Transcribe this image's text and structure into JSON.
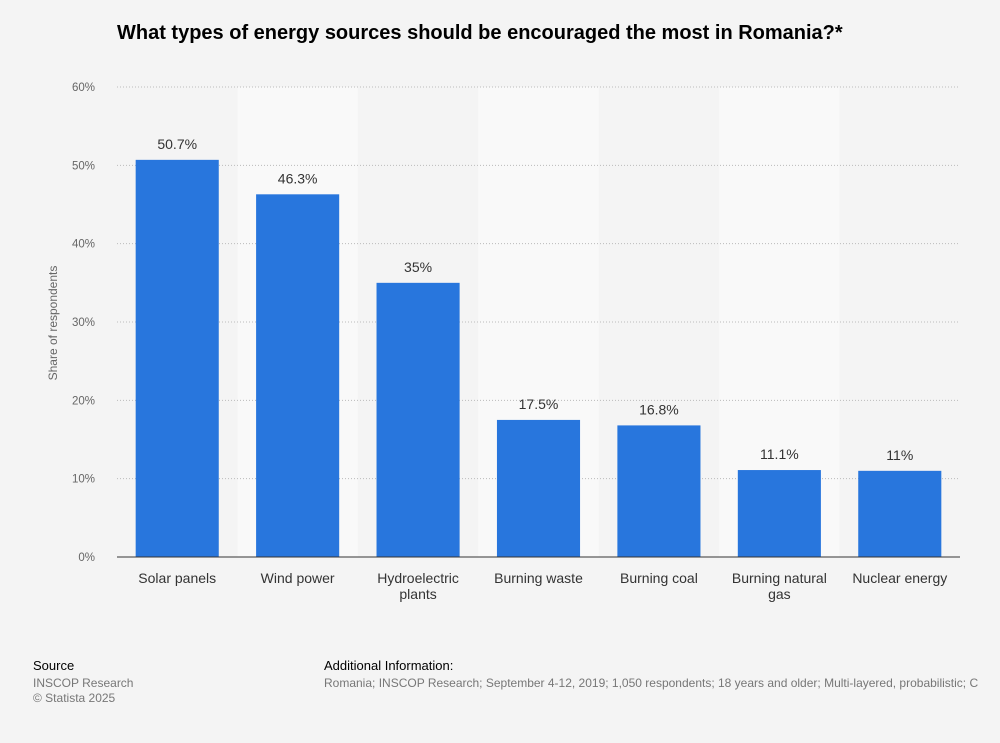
{
  "chart_data": {
    "type": "bar",
    "title": "What types of energy sources should be encouraged the most in Romania?*",
    "ylabel": "Share of respondents",
    "xlabel": "",
    "ylim": [
      0,
      60
    ],
    "yticks": [
      "0%",
      "10%",
      "20%",
      "30%",
      "40%",
      "50%",
      "60%"
    ],
    "categories": [
      [
        "Solar panels"
      ],
      [
        "Wind power"
      ],
      [
        "Hydroelectric",
        "plants"
      ],
      [
        "Burning waste"
      ],
      [
        "Burning coal"
      ],
      [
        "Burning natural",
        "gas"
      ],
      [
        "Nuclear energy"
      ]
    ],
    "values": [
      50.7,
      46.3,
      35,
      17.5,
      16.8,
      11.1,
      11
    ],
    "value_labels": [
      "50.7%",
      "46.3%",
      "35%",
      "17.5%",
      "16.8%",
      "11.1%",
      "11%"
    ],
    "grid": true,
    "bar_color": "#2876dd",
    "stripe_color": "#f9f9f9"
  },
  "footer": {
    "source_title": "Source",
    "source_lines": [
      "INSCOP Research",
      "© Statista 2025"
    ],
    "info_title": "Additional Information:",
    "info_text": "Romania; INSCOP Research; September 4-12, 2019; 1,050 respondents; 18 years and older; Multi-layered, probabilistic; C"
  }
}
